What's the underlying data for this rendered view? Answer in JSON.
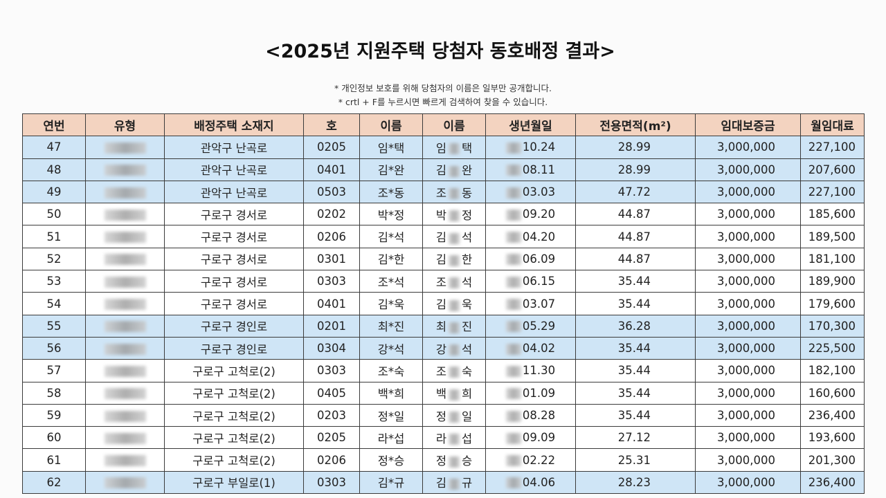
{
  "header": {
    "title": "<2025년 지원주택 당첨자 동호배정 결과>",
    "notes": [
      "* 개인정보 보호를 위해 당첨자의 이름은 일부만 공개합니다.",
      "* crtl + F를 누르시면 빠르게 검색하여 찾을 수 있습니다."
    ]
  },
  "table": {
    "columns": [
      "연번",
      "유형",
      "배정주택 소재지",
      "호",
      "이름",
      "이름",
      "생년월일",
      "전용면적(m²)",
      "임대보증금",
      "월임대료"
    ],
    "rows": [
      {
        "no": "47",
        "address": "관악구 난곡로",
        "unit": "0205",
        "name": "임*택",
        "name_given": [
          "임",
          "택"
        ],
        "birth": "10.24",
        "area": "28.99",
        "deposit": "3,000,000",
        "rent": "227,100",
        "highlighted": true
      },
      {
        "no": "48",
        "address": "관악구 난곡로",
        "unit": "0401",
        "name": "김*완",
        "name_given": [
          "김",
          "완"
        ],
        "birth": "08.11",
        "area": "28.99",
        "deposit": "3,000,000",
        "rent": "207,600",
        "highlighted": true
      },
      {
        "no": "49",
        "address": "관악구 난곡로",
        "unit": "0503",
        "name": "조*동",
        "name_given": [
          "조",
          "동"
        ],
        "birth": "03.03",
        "area": "47.72",
        "deposit": "3,000,000",
        "rent": "227,100",
        "highlighted": true
      },
      {
        "no": "50",
        "address": "구로구 경서로",
        "unit": "0202",
        "name": "박*정",
        "name_given": [
          "박",
          "정"
        ],
        "birth": "09.20",
        "area": "44.87",
        "deposit": "3,000,000",
        "rent": "185,600",
        "highlighted": false
      },
      {
        "no": "51",
        "address": "구로구 경서로",
        "unit": "0206",
        "name": "김*석",
        "name_given": [
          "김",
          "석"
        ],
        "birth": "04.20",
        "area": "44.87",
        "deposit": "3,000,000",
        "rent": "189,500",
        "highlighted": false
      },
      {
        "no": "52",
        "address": "구로구 경서로",
        "unit": "0301",
        "name": "김*한",
        "name_given": [
          "김",
          "한"
        ],
        "birth": "06.09",
        "area": "44.87",
        "deposit": "3,000,000",
        "rent": "181,100",
        "highlighted": false
      },
      {
        "no": "53",
        "address": "구로구 경서로",
        "unit": "0303",
        "name": "조*석",
        "name_given": [
          "조",
          "석"
        ],
        "birth": "06.15",
        "area": "35.44",
        "deposit": "3,000,000",
        "rent": "189,900",
        "highlighted": false
      },
      {
        "no": "54",
        "address": "구로구 경서로",
        "unit": "0401",
        "name": "김*욱",
        "name_given": [
          "김",
          "욱"
        ],
        "birth": "03.07",
        "area": "35.44",
        "deposit": "3,000,000",
        "rent": "179,600",
        "highlighted": false
      },
      {
        "no": "55",
        "address": "구로구 경인로",
        "unit": "0201",
        "name": "최*진",
        "name_given": [
          "최",
          "진"
        ],
        "birth": "05.29",
        "area": "36.28",
        "deposit": "3,000,000",
        "rent": "170,300",
        "highlighted": true
      },
      {
        "no": "56",
        "address": "구로구 경인로",
        "unit": "0304",
        "name": "강*석",
        "name_given": [
          "강",
          "석"
        ],
        "birth": "04.02",
        "area": "35.44",
        "deposit": "3,000,000",
        "rent": "225,500",
        "highlighted": true
      },
      {
        "no": "57",
        "address": "구로구 고척로(2)",
        "unit": "0303",
        "name": "조*숙",
        "name_given": [
          "조",
          "숙"
        ],
        "birth": "11.30",
        "area": "35.44",
        "deposit": "3,000,000",
        "rent": "182,100",
        "highlighted": false
      },
      {
        "no": "58",
        "address": "구로구 고척로(2)",
        "unit": "0405",
        "name": "백*희",
        "name_given": [
          "백",
          "희"
        ],
        "birth": "01.09",
        "area": "35.44",
        "deposit": "3,000,000",
        "rent": "160,600",
        "highlighted": false
      },
      {
        "no": "59",
        "address": "구로구 고척로(2)",
        "unit": "0203",
        "name": "정*일",
        "name_given": [
          "정",
          "일"
        ],
        "birth": "08.28",
        "area": "35.44",
        "deposit": "3,000,000",
        "rent": "236,400",
        "highlighted": false
      },
      {
        "no": "60",
        "address": "구로구 고척로(2)",
        "unit": "0205",
        "name": "라*섭",
        "name_given": [
          "라",
          "섭"
        ],
        "birth": "09.09",
        "area": "27.12",
        "deposit": "3,000,000",
        "rent": "193,600",
        "highlighted": false
      },
      {
        "no": "61",
        "address": "구로구 고척로(2)",
        "unit": "0206",
        "name": "정*승",
        "name_given": [
          "정",
          "승"
        ],
        "birth": "02.22",
        "area": "25.31",
        "deposit": "3,000,000",
        "rent": "201,300",
        "highlighted": false
      },
      {
        "no": "62",
        "address": "구로구 부일로(1)",
        "unit": "0303",
        "name": "김*규",
        "name_given": [
          "김",
          "규"
        ],
        "birth": "04.06",
        "area": "28.23",
        "deposit": "3,000,000",
        "rent": "236,400",
        "highlighted": true
      }
    ]
  }
}
